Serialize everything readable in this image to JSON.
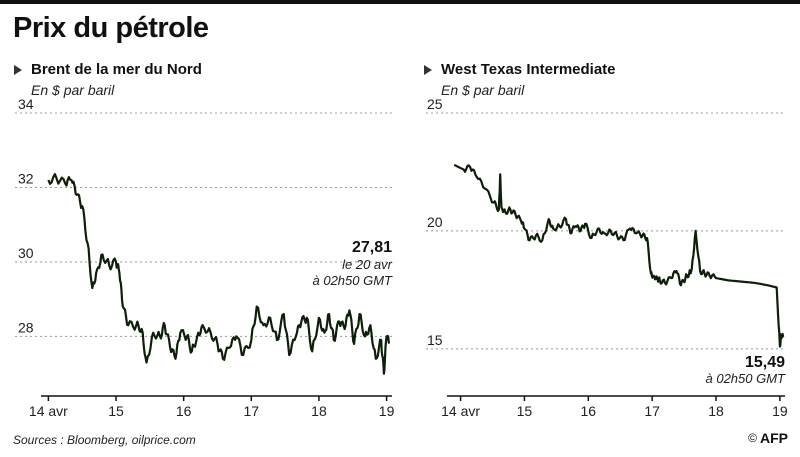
{
  "title": "Prix du pétrole",
  "footer": {
    "sources": "Sources : Bloomberg, oilprice.com",
    "logo": "AFP"
  },
  "colors": {
    "line": "#0d1f08",
    "grid": "#999999",
    "axis": "#111111"
  },
  "chart_data": [
    {
      "type": "line",
      "title": "Brent de la mer du Nord",
      "subtitle": "En $ par baril",
      "x_ticks": [
        "14 avr",
        "15",
        "16",
        "17",
        "18",
        "19"
      ],
      "x_tick_pos": [
        0,
        1,
        2,
        3,
        4,
        5
      ],
      "xlim": [
        -0.05,
        5.08
      ],
      "y_ticks": [
        28,
        30,
        32,
        34
      ],
      "ylim": [
        26.4,
        34
      ],
      "grid": "horizontal-dotted",
      "series": [
        {
          "x": [
            0.0,
            0.12,
            0.25,
            0.34,
            0.42,
            0.5,
            0.58,
            0.65,
            0.72,
            0.8,
            0.9,
            1.0,
            1.05,
            1.1,
            1.18,
            1.3,
            1.38,
            1.45,
            1.55,
            1.65,
            1.72,
            1.8,
            1.88,
            1.95,
            2.05,
            2.12,
            2.2,
            2.28,
            2.4,
            2.5,
            2.58,
            2.68,
            2.78,
            2.88,
            3.0,
            3.08,
            3.18,
            3.28,
            3.38,
            3.48,
            3.56,
            3.66,
            3.74,
            3.82,
            3.9,
            4.0,
            4.08,
            4.15,
            4.22,
            4.3,
            4.38,
            4.45,
            4.52,
            4.6,
            4.68,
            4.76,
            4.84,
            4.92,
            4.96,
            5.0,
            5.04
          ],
          "y": [
            32.2,
            32.25,
            32.1,
            32.2,
            31.8,
            31.5,
            30.5,
            29.3,
            29.8,
            30.2,
            29.9,
            30.0,
            29.7,
            28.8,
            28.3,
            28.3,
            28.2,
            27.3,
            28.1,
            28.0,
            28.3,
            27.7,
            27.4,
            28.1,
            28.0,
            27.6,
            28.0,
            28.3,
            28.1,
            27.8,
            27.4,
            27.7,
            28.0,
            27.5,
            27.9,
            28.8,
            28.3,
            28.5,
            27.9,
            28.6,
            27.5,
            28.0,
            28.4,
            28.5,
            27.6,
            28.5,
            28.1,
            28.6,
            27.9,
            28.4,
            28.2,
            28.7,
            27.8,
            28.6,
            28.0,
            28.3,
            27.4,
            27.9,
            27.0,
            28.0,
            27.81
          ]
        }
      ],
      "annotation": {
        "value": "27,81",
        "line1": "le 20 avr",
        "line2": "à 02h50 GMT"
      }
    },
    {
      "type": "line",
      "title": "West Texas Intermediate",
      "subtitle": "En $ par baril",
      "x_ticks": [
        "14 avr",
        "15",
        "16",
        "17",
        "18",
        "19"
      ],
      "x_tick_pos": [
        0,
        1,
        2,
        3,
        4,
        5
      ],
      "xlim": [
        -0.15,
        5.08
      ],
      "y_ticks": [
        15,
        20,
        25
      ],
      "ylim": [
        13,
        25
      ],
      "grid": "horizontal-dotted",
      "series": [
        {
          "x": [
            -0.1,
            0.05,
            0.15,
            0.25,
            0.38,
            0.52,
            0.6,
            0.62,
            0.64,
            0.7,
            0.78,
            0.86,
            0.95,
            1.0,
            1.08,
            1.18,
            1.28,
            1.38,
            1.45,
            1.55,
            1.65,
            1.72,
            1.8,
            1.88,
            1.95,
            2.05,
            2.15,
            2.25,
            2.35,
            2.45,
            2.55,
            2.65,
            2.75,
            2.85,
            2.92,
            2.98,
            3.02,
            3.08,
            3.12,
            3.2,
            3.3,
            3.38,
            3.45,
            3.52,
            3.58,
            3.62,
            3.68,
            3.75,
            3.82,
            3.9,
            4.0,
            4.2,
            4.4,
            4.6,
            4.8,
            4.95,
            5.0,
            5.02,
            5.05
          ],
          "y": [
            22.8,
            22.6,
            22.7,
            22.3,
            21.8,
            21.2,
            20.9,
            22.4,
            21.0,
            20.8,
            20.9,
            20.7,
            20.4,
            20.1,
            19.6,
            19.8,
            19.6,
            20.5,
            20.1,
            20.2,
            20.5,
            19.9,
            20.2,
            20.0,
            20.3,
            19.7,
            20.1,
            19.9,
            20.0,
            19.8,
            19.6,
            20.1,
            19.9,
            19.8,
            19.7,
            18.2,
            18.1,
            18.0,
            17.9,
            17.8,
            18.0,
            18.3,
            17.7,
            18.0,
            18.2,
            18.4,
            20.0,
            18.3,
            18.2,
            18.1,
            18.0,
            17.9,
            17.85,
            17.8,
            17.7,
            17.6,
            15.1,
            15.6,
            15.49
          ]
        }
      ],
      "annotation": {
        "value": "15,49",
        "line1": "à 02h50 GMT"
      }
    }
  ]
}
